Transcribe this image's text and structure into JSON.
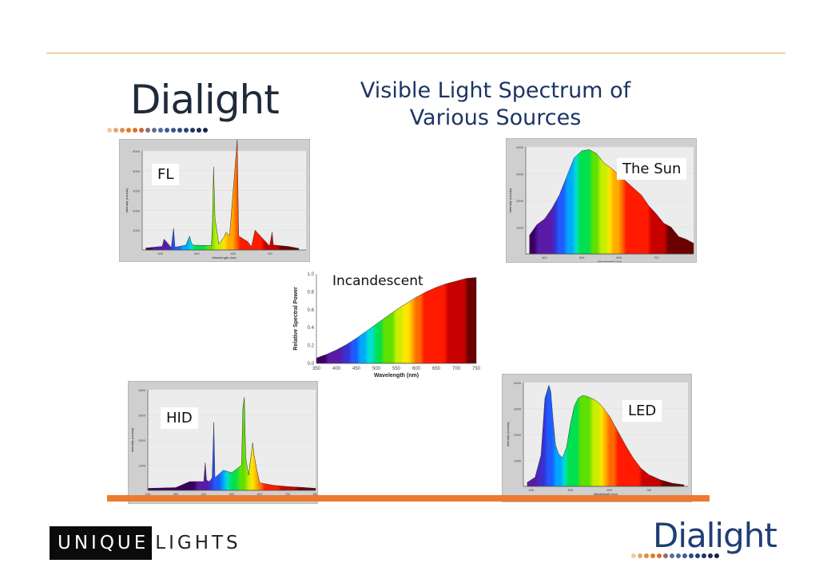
{
  "slide": {
    "title_line1": "Visible Light Spectrum of",
    "title_line2": "Various Sources",
    "logo_top": "Dialight",
    "logo_bottom": "Dialight",
    "footer_logo_dark": "UNIQUE",
    "footer_logo_light": "LIGHTS",
    "colors": {
      "rule": "#e8a650",
      "band": "#ec7a2e",
      "title": "#1d3563",
      "panel_bg": "#cfcfcf"
    }
  },
  "chart_data": [
    {
      "type": "area",
      "title": "FL",
      "xlabel": "Wavelength (nm)",
      "ylabel": "Intensity (counts)",
      "xlim": [
        350,
        800
      ],
      "ylim": [
        0,
        5000
      ],
      "x_ticks": [
        "400",
        "500",
        "600",
        "700"
      ],
      "y_ticks": [
        "1000",
        "2000",
        "3000",
        "4000",
        "5000"
      ],
      "x": [
        360,
        405,
        410,
        430,
        436,
        440,
        470,
        480,
        485,
        490,
        540,
        543,
        546,
        550,
        560,
        575,
        580,
        590,
        605,
        611,
        615,
        640,
        650,
        660,
        700,
        707,
        710,
        750,
        780
      ],
      "values": [
        100,
        180,
        550,
        120,
        1100,
        140,
        240,
        700,
        360,
        240,
        220,
        1400,
        4200,
        1600,
        300,
        650,
        900,
        720,
        4200,
        5600,
        700,
        420,
        160,
        1000,
        200,
        900,
        250,
        180,
        80
      ]
    },
    {
      "type": "area",
      "title": "The Sun",
      "xlabel": "Wavelength (nm)",
      "ylabel": "Intensity (counts)",
      "xlim": [
        350,
        800
      ],
      "ylim": [
        0,
        4000
      ],
      "x_ticks": [
        "400",
        "500",
        "600",
        "700"
      ],
      "y_ticks": [
        "1000",
        "2000",
        "3000",
        "4000"
      ],
      "x": [
        360,
        380,
        400,
        420,
        440,
        460,
        480,
        500,
        520,
        540,
        560,
        580,
        600,
        620,
        640,
        660,
        680,
        700,
        720,
        740,
        760,
        780,
        800
      ],
      "values": [
        700,
        1100,
        1300,
        1700,
        2200,
        2900,
        3600,
        3850,
        3900,
        3750,
        3400,
        3200,
        2950,
        2700,
        2450,
        2200,
        1800,
        1500,
        1150,
        1000,
        650,
        550,
        400
      ]
    },
    {
      "type": "area",
      "title": "Incandescent",
      "xlabel": "Wavelength (nm)",
      "ylabel": "Relative Spectral Power",
      "xlim": [
        350,
        750
      ],
      "ylim": [
        0,
        1.0
      ],
      "x_ticks": [
        "350",
        "400",
        "450",
        "500",
        "550",
        "600",
        "650",
        "700",
        "750"
      ],
      "y_ticks": [
        "0.0",
        "0.2",
        "0.4",
        "0.6",
        "0.8",
        "1.0"
      ],
      "x": [
        350,
        375,
        400,
        425,
        450,
        475,
        500,
        525,
        550,
        575,
        600,
        625,
        650,
        675,
        700,
        725,
        750
      ],
      "values": [
        0.06,
        0.1,
        0.15,
        0.21,
        0.28,
        0.36,
        0.44,
        0.52,
        0.6,
        0.67,
        0.74,
        0.8,
        0.85,
        0.89,
        0.92,
        0.95,
        0.96
      ]
    },
    {
      "type": "area",
      "title": "HID",
      "xlabel": "Wavelength (nm)",
      "ylabel": "Intensity (counts)",
      "xlim": [
        200,
        800
      ],
      "ylim": [
        0,
        4000
      ],
      "x_ticks": [
        "200",
        "300",
        "400",
        "500",
        "600",
        "700",
        "800"
      ],
      "y_ticks": [
        "1000",
        "2000",
        "3000",
        "4000"
      ],
      "x": [
        200,
        300,
        350,
        400,
        405,
        410,
        420,
        430,
        436,
        440,
        470,
        500,
        535,
        540,
        545,
        550,
        560,
        575,
        580,
        590,
        600,
        650,
        700,
        750,
        800
      ],
      "values": [
        80,
        110,
        350,
        350,
        1100,
        400,
        350,
        500,
        2700,
        500,
        800,
        700,
        1000,
        3300,
        3700,
        1300,
        600,
        1900,
        1400,
        800,
        300,
        200,
        150,
        120,
        80
      ]
    },
    {
      "type": "area",
      "title": "LED",
      "xlabel": "Wavelength (nm)",
      "ylabel": "Intensity (counts)",
      "xlim": [
        380,
        800
      ],
      "ylim": [
        0,
        4000
      ],
      "x_ticks": [
        "400",
        "500",
        "600",
        "700"
      ],
      "y_ticks": [
        "1000",
        "2000",
        "3000",
        "4000"
      ],
      "x": [
        390,
        410,
        425,
        435,
        445,
        450,
        455,
        462,
        470,
        480,
        490,
        500,
        510,
        520,
        530,
        540,
        550,
        560,
        570,
        580,
        600,
        620,
        640,
        660,
        680,
        700,
        730,
        760,
        790
      ],
      "values": [
        150,
        350,
        1200,
        3400,
        3900,
        3650,
        2700,
        1600,
        1250,
        1100,
        1500,
        2400,
        3100,
        3400,
        3500,
        3480,
        3420,
        3350,
        3250,
        3100,
        2700,
        2150,
        1600,
        1100,
        700,
        450,
        250,
        120,
        60
      ]
    }
  ]
}
